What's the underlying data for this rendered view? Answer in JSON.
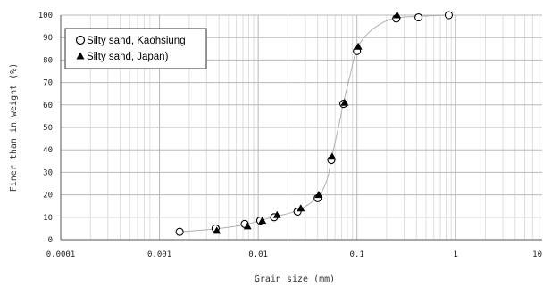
{
  "chart_data": {
    "type": "scatter",
    "xscale": "log",
    "xlim": [
      0.0001,
      10
    ],
    "ylim": [
      0,
      100
    ],
    "xlabel": "Grain size (mm)",
    "ylabel": "Finer than in weight (%)",
    "x_tick_labels": [
      "0.0001",
      "0.001",
      "0.01",
      "0.1",
      "1",
      "10"
    ],
    "y_tick_labels": [
      "0",
      "10",
      "20",
      "30",
      "40",
      "50",
      "60",
      "70",
      "80",
      "90",
      "100"
    ],
    "grid": true,
    "legend_position": "top-left",
    "series": [
      {
        "name": "Silty sand, Kaohsiung",
        "marker": "open-circle",
        "points": [
          {
            "x": 0.0016,
            "y": 3.5
          },
          {
            "x": 0.0037,
            "y": 5
          },
          {
            "x": 0.0073,
            "y": 7
          },
          {
            "x": 0.0105,
            "y": 8.5
          },
          {
            "x": 0.0145,
            "y": 10
          },
          {
            "x": 0.025,
            "y": 12.5
          },
          {
            "x": 0.04,
            "y": 18.5
          },
          {
            "x": 0.055,
            "y": 35.5
          },
          {
            "x": 0.073,
            "y": 60.5
          },
          {
            "x": 0.1,
            "y": 84
          },
          {
            "x": 0.25,
            "y": 98.5
          },
          {
            "x": 0.42,
            "y": 99
          },
          {
            "x": 0.85,
            "y": 100
          }
        ]
      },
      {
        "name": "Silty sand, Japan)",
        "marker": "filled-triangle",
        "points": [
          {
            "x": 0.0038,
            "y": 4
          },
          {
            "x": 0.0078,
            "y": 6
          },
          {
            "x": 0.011,
            "y": 8.5
          },
          {
            "x": 0.0155,
            "y": 11
          },
          {
            "x": 0.027,
            "y": 14
          },
          {
            "x": 0.041,
            "y": 20
          },
          {
            "x": 0.056,
            "y": 37
          },
          {
            "x": 0.075,
            "y": 61
          },
          {
            "x": 0.103,
            "y": 86
          },
          {
            "x": 0.255,
            "y": 100
          }
        ]
      }
    ],
    "trend_line": [
      {
        "x": 0.0016,
        "y": 3.5
      },
      {
        "x": 0.0037,
        "y": 4.8
      },
      {
        "x": 0.0073,
        "y": 6.7
      },
      {
        "x": 0.0105,
        "y": 8.5
      },
      {
        "x": 0.0145,
        "y": 10.2
      },
      {
        "x": 0.025,
        "y": 13
      },
      {
        "x": 0.04,
        "y": 19
      },
      {
        "x": 0.05,
        "y": 27
      },
      {
        "x": 0.055,
        "y": 36
      },
      {
        "x": 0.065,
        "y": 50
      },
      {
        "x": 0.073,
        "y": 61
      },
      {
        "x": 0.085,
        "y": 73
      },
      {
        "x": 0.1,
        "y": 85
      },
      {
        "x": 0.13,
        "y": 92
      },
      {
        "x": 0.18,
        "y": 96.5
      },
      {
        "x": 0.25,
        "y": 98.8
      },
      {
        "x": 0.42,
        "y": 99.5
      },
      {
        "x": 0.85,
        "y": 100
      }
    ],
    "colors": {
      "major_grid": "#b8b8b8",
      "minor_grid": "#dedede",
      "trend": "#b0b0b0",
      "marker": "#000000",
      "axis": "#555555"
    }
  }
}
